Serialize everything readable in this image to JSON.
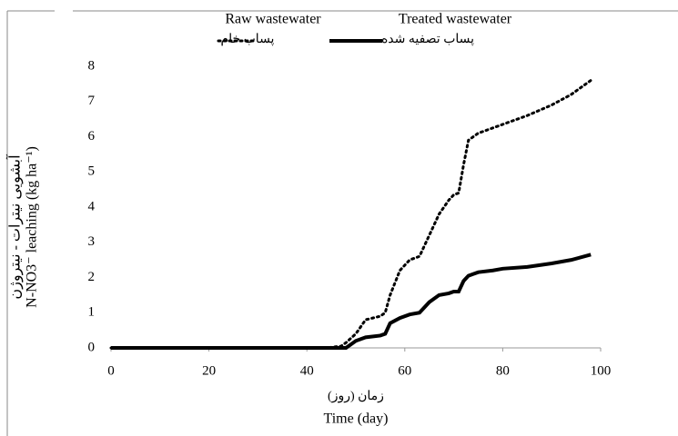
{
  "chart_data": {
    "type": "line",
    "y_label_fa": "آبشویی نیترات - نیتروژن",
    "y_label": "N-NO3⁻ leaching (kg ha⁻¹)",
    "x_label_fa": "زمان (روز)",
    "x_label": "Time (day)",
    "x": [
      0,
      44,
      47,
      48,
      50,
      52,
      55,
      56,
      57,
      59,
      61,
      63,
      65,
      67,
      69,
      70,
      71,
      72,
      73,
      74,
      75,
      78,
      80,
      85,
      90,
      94,
      98
    ],
    "series": [
      {
        "name": "Raw wastewater",
        "name_fa": "پساب خام",
        "color": "#000000",
        "dash": "dotted",
        "values": [
          0,
          0,
          0.05,
          0.15,
          0.4,
          0.8,
          0.9,
          1.0,
          1.5,
          2.2,
          2.5,
          2.6,
          3.2,
          3.8,
          4.2,
          4.35,
          4.4,
          5.2,
          5.9,
          6.0,
          6.1,
          6.25,
          6.35,
          6.6,
          6.9,
          7.2,
          7.6
        ]
      },
      {
        "name": "Treated  wastewater",
        "name_fa": "پساب تصفیه شده",
        "color": "#000000",
        "dash": "solid",
        "values": [
          0,
          0,
          0,
          0,
          0.2,
          0.3,
          0.35,
          0.4,
          0.7,
          0.85,
          0.95,
          1.0,
          1.3,
          1.5,
          1.55,
          1.6,
          1.6,
          1.9,
          2.05,
          2.1,
          2.15,
          2.2,
          2.25,
          2.3,
          2.4,
          2.5,
          2.65
        ]
      }
    ],
    "xlim": [
      0,
      100
    ],
    "xticks": [
      0,
      20,
      40,
      60,
      80,
      100
    ],
    "ylim": [
      0,
      8
    ],
    "yticks": [
      0,
      1,
      2,
      3,
      4,
      5,
      6,
      7,
      8
    ],
    "grid": false
  }
}
